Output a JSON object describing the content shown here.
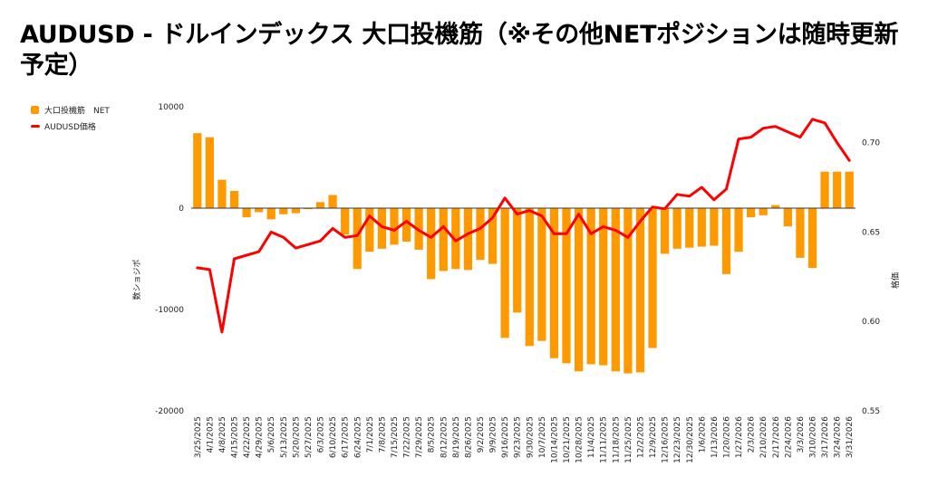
{
  "title": "AUDUSD - ドルインデックス 大口投機筋（※その他NETポジションは随時更新予定）",
  "colors": {
    "bar": "#ff9900",
    "line": "#ff0000",
    "zero_line": "#333333"
  },
  "chart_data": {
    "type": "bar",
    "title": "AUDUSD - ドルインデックス 大口投機筋（※その他NETポジションは随時更新予定）",
    "legend_position": "top-left",
    "grid": false,
    "categories": [
      "3/25/2025",
      "4/1/2025",
      "4/8/2025",
      "4/15/2025",
      "4/22/2025",
      "4/29/2025",
      "5/6/2025",
      "5/13/2025",
      "5/20/2025",
      "5/27/2025",
      "6/3/2025",
      "6/10/2025",
      "6/17/2025",
      "6/24/2025",
      "7/1/2025",
      "7/8/2025",
      "7/15/2025",
      "7/22/2025",
      "7/29/2025",
      "8/5/2025",
      "8/12/2025",
      "8/19/2025",
      "8/26/2025",
      "9/2/2025",
      "9/9/2025",
      "9/16/2025",
      "9/23/2025",
      "9/30/2025",
      "10/7/2025",
      "10/14/2025",
      "10/21/2025",
      "10/28/2025",
      "11/4/2025",
      "11/11/2025",
      "11/18/2025",
      "11/25/2025",
      "12/2/2025",
      "12/9/2025",
      "12/16/2025",
      "12/23/2025",
      "12/30/2025",
      "1/6/2026",
      "1/13/2026",
      "1/20/2026",
      "1/27/2026",
      "2/3/2026",
      "2/10/2026",
      "2/17/2026",
      "2/24/2026",
      "3/3/2026",
      "3/10/2026",
      "3/17/2026",
      "3/24/2026",
      "3/31/2026"
    ],
    "x_tick_labels": [
      "3/25/2025",
      "4/1/2025",
      "4/8/2025",
      "4/15/2025",
      "4/22/2025",
      "4/29/2025",
      "5/6/2025",
      "5/13/2025",
      "5/20/2025",
      "5/27/2025",
      "6/3/2025",
      "6/10/2025",
      "6/17/2025",
      "6/24/2025",
      "7/1/2025",
      "7/8/2025",
      "7/15/2025",
      "7/22/2025",
      "7/29/2025",
      "8/5/2025",
      "8/12/2025",
      "8/19/2025",
      "8/26/2025",
      "9/2/2025",
      "9/9/2025",
      "9/16/2025",
      "9/23/2025",
      "9/30/2025",
      "10/7/2025",
      "10/14/2025",
      "10/21/2025",
      "10/28/2025",
      "11/4/2025",
      "11/11/2025",
      "11/18/2025",
      "11/25/2025",
      "12/2/2025",
      "12/9/2025",
      "12/16/2025",
      "12/23/2025",
      "12/30/2025",
      "1/6/2026",
      "1/13/2026",
      "1/20/2026",
      "1/27/2026",
      "2/3/2026",
      "2/10/2026",
      "2/17/2026",
      "2/24/2026",
      "3/3/2026",
      "3/10/2026",
      "3/17/2026",
      "3/24/2026",
      "3/31/2026"
    ],
    "series": [
      {
        "name": "大口投機筋　NET",
        "type": "bar",
        "axis": "left",
        "values": [
          7400,
          7000,
          2800,
          1700,
          -900,
          -400,
          -1100,
          -600,
          -500,
          -100,
          600,
          1300,
          -2600,
          -6000,
          -4300,
          -4000,
          -3600,
          -3300,
          -4100,
          -7000,
          -6200,
          -6000,
          -6100,
          -5100,
          -5500,
          -12800,
          -10300,
          -13600,
          -13100,
          -14800,
          -15300,
          -16100,
          -15400,
          -15500,
          -16100,
          -16300,
          -16200,
          -13800,
          -4500,
          -4000,
          -3900,
          -3800,
          -3700,
          -6500,
          -4300,
          -900,
          -700,
          300,
          -1800,
          -4900,
          -5900,
          3600,
          3600,
          3600
        ]
      },
      {
        "name": "AUDUSD価格",
        "type": "line",
        "axis": "right",
        "values": [
          0.63,
          0.629,
          0.594,
          0.635,
          0.637,
          0.639,
          0.65,
          0.647,
          0.641,
          0.643,
          0.645,
          0.652,
          0.647,
          0.648,
          0.659,
          0.653,
          0.651,
          0.656,
          0.651,
          0.647,
          0.653,
          0.645,
          0.649,
          0.652,
          0.658,
          0.669,
          0.66,
          0.662,
          0.659,
          0.649,
          0.649,
          0.66,
          0.649,
          0.653,
          0.651,
          0.647,
          0.656,
          0.664,
          0.663,
          0.671,
          0.67,
          0.675,
          0.668,
          0.674,
          0.702,
          0.703,
          0.708,
          0.709,
          0.706,
          0.703,
          0.713,
          0.711,
          0.7,
          0.69
        ]
      }
    ],
    "y_left": {
      "label": "数ショジポ",
      "range": [
        -20000,
        10000
      ],
      "ticks": [
        10000,
        0,
        -10000,
        -20000
      ],
      "tick_labels": [
        "10000",
        "0",
        "-10000",
        "-20000"
      ]
    },
    "y_right": {
      "label": "格価",
      "range": [
        0.55,
        0.72
      ],
      "ticks": [
        0.7,
        0.65,
        0.6,
        0.55
      ],
      "tick_labels": [
        "0.70",
        "0.65",
        "0.60",
        "0.55"
      ]
    }
  }
}
